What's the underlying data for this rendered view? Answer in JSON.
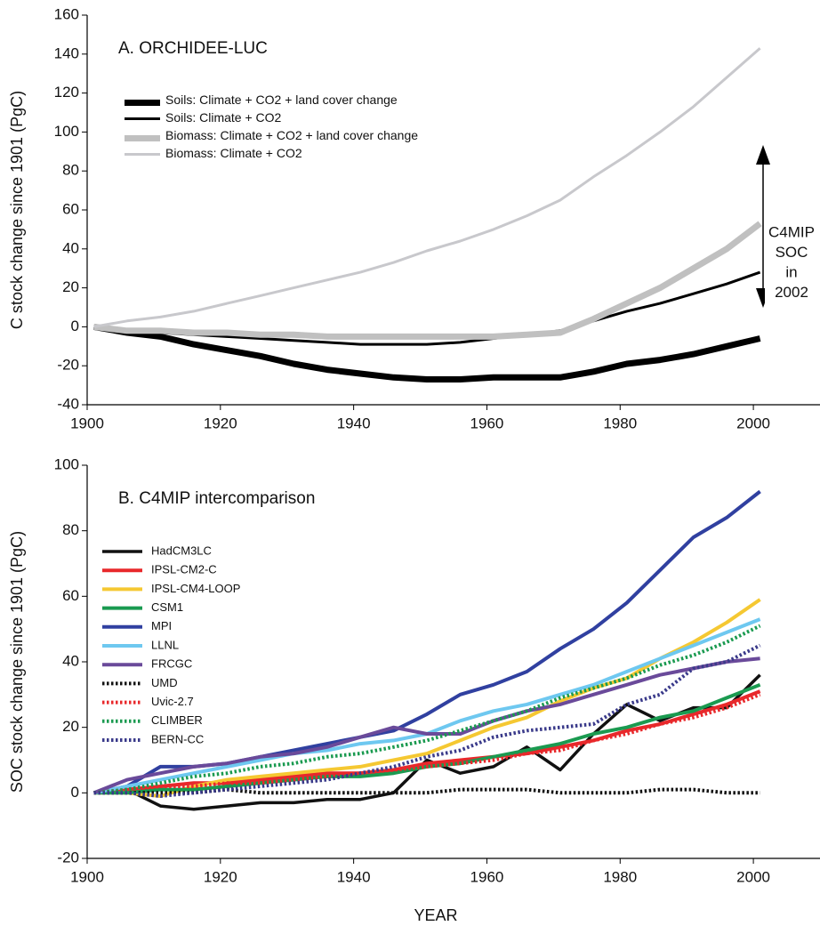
{
  "chart_data": [
    {
      "type": "line",
      "title": "A. ORCHIDEE-LUC",
      "y_label": "C stock change since 1901 (PgC)",
      "annotation": [
        "C4MIP",
        "SOC",
        "in",
        "2002"
      ],
      "x": [
        1901,
        1906,
        1911,
        1916,
        1921,
        1926,
        1931,
        1936,
        1941,
        1946,
        1951,
        1956,
        1961,
        1966,
        1971,
        1976,
        1981,
        1986,
        1991,
        1996,
        2001
      ],
      "xlim": [
        1900,
        2010
      ],
      "xticks": [
        1900,
        1920,
        1940,
        1960,
        1980,
        2000
      ],
      "ylim": [
        -40,
        160
      ],
      "yticks": [
        -40,
        -20,
        0,
        20,
        40,
        60,
        80,
        100,
        120,
        140,
        160
      ],
      "series": [
        {
          "name": "Soils: Climate + CO2 + land cover change",
          "color": "#000000",
          "line_width": 7,
          "dashed": false,
          "values": [
            0,
            -3,
            -5,
            -9,
            -12,
            -15,
            -19,
            -22,
            -24,
            -26,
            -27,
            -27,
            -26,
            -26,
            -26,
            -23,
            -19,
            -17,
            -14,
            -10,
            -6
          ]
        },
        {
          "name": "Soils: Climate + CO2",
          "color": "#000000",
          "line_width": 3,
          "dashed": false,
          "values": [
            0,
            -3,
            -3,
            -4,
            -5,
            -6,
            -7,
            -8,
            -9,
            -9,
            -9,
            -8,
            -6,
            -4,
            -2,
            3,
            8,
            12,
            17,
            22,
            28
          ]
        },
        {
          "name": "Biomass: Climate + CO2 + land cover change",
          "color": "#c0c0c0",
          "line_width": 7,
          "dashed": false,
          "values": [
            0,
            -2,
            -2,
            -3,
            -3,
            -4,
            -4,
            -5,
            -5,
            -5,
            -5,
            -5,
            -5,
            -4,
            -3,
            4,
            12,
            20,
            30,
            40,
            53
          ]
        },
        {
          "name": "Biomass: Climate + CO2",
          "color": "#c8c8cc",
          "line_width": 3,
          "dashed": false,
          "values": [
            0,
            3,
            5,
            8,
            12,
            16,
            20,
            24,
            28,
            33,
            39,
            44,
            50,
            57,
            65,
            77,
            88,
            100,
            113,
            128,
            143
          ]
        }
      ]
    },
    {
      "type": "line",
      "title": "B. C4MIP intercomparison",
      "y_label": "SOC stock change since 1901 (PgC)",
      "x_label": "YEAR",
      "x": [
        1901,
        1906,
        1911,
        1916,
        1921,
        1926,
        1931,
        1936,
        1941,
        1946,
        1951,
        1956,
        1961,
        1966,
        1971,
        1976,
        1981,
        1986,
        1991,
        1996,
        2001
      ],
      "xlim": [
        1900,
        2010
      ],
      "xticks": [
        1900,
        1920,
        1940,
        1960,
        1980,
        2000
      ],
      "ylim": [
        -20,
        100
      ],
      "yticks": [
        -20,
        0,
        20,
        40,
        60,
        80,
        100
      ],
      "series": [
        {
          "name": "HadCM3LC",
          "color": "#111111",
          "line_width": 3.5,
          "dashed": false,
          "values": [
            0,
            1,
            -4,
            -5,
            -4,
            -3,
            -3,
            -2,
            -2,
            0,
            10,
            6,
            8,
            14,
            7,
            18,
            27,
            22,
            26,
            26,
            36
          ]
        },
        {
          "name": "IPSL-CM2-C",
          "color": "#e8282b",
          "line_width": 4,
          "dashed": false,
          "values": [
            0,
            1,
            2,
            3,
            3,
            4,
            5,
            6,
            6,
            7,
            9,
            10,
            11,
            12,
            14,
            16,
            19,
            21,
            24,
            27,
            31
          ]
        },
        {
          "name": "IPSL-CM4-LOOP",
          "color": "#f5c832",
          "line_width": 4,
          "dashed": false,
          "values": [
            0,
            0,
            -1,
            2,
            4,
            5,
            6,
            7,
            8,
            10,
            12,
            16,
            20,
            23,
            28,
            32,
            35,
            41,
            46,
            52,
            59
          ]
        },
        {
          "name": "CSM1",
          "color": "#1a9a50",
          "line_width": 4,
          "dashed": false,
          "values": [
            0,
            0,
            1,
            1,
            2,
            3,
            4,
            5,
            5,
            6,
            8,
            9,
            11,
            13,
            15,
            18,
            20,
            23,
            25,
            29,
            33
          ]
        },
        {
          "name": "MPI",
          "color": "#3040a0",
          "line_width": 4,
          "dashed": false,
          "values": [
            0,
            2,
            8,
            8,
            9,
            11,
            13,
            15,
            17,
            19,
            24,
            30,
            33,
            37,
            44,
            50,
            58,
            68,
            78,
            84,
            92
          ]
        },
        {
          "name": "LLNL",
          "color": "#6ec8f0",
          "line_width": 4,
          "dashed": false,
          "values": [
            0,
            2,
            4,
            6,
            8,
            10,
            12,
            13,
            15,
            16,
            18,
            22,
            25,
            27,
            30,
            33,
            37,
            41,
            45,
            49,
            53
          ]
        },
        {
          "name": "FRCGC",
          "color": "#6a4a9a",
          "line_width": 4,
          "dashed": false,
          "values": [
            0,
            4,
            6,
            8,
            9,
            11,
            12,
            14,
            17,
            20,
            18,
            18,
            22,
            25,
            27,
            30,
            33,
            36,
            38,
            40,
            41
          ]
        },
        {
          "name": "UMD",
          "color": "#111111",
          "line_width": 4,
          "dashed": true,
          "values": [
            0,
            0,
            0,
            0,
            1,
            0,
            0,
            0,
            0,
            0,
            0,
            1,
            1,
            1,
            0,
            0,
            0,
            1,
            1,
            0,
            0
          ]
        },
        {
          "name": "Uvic-2.7",
          "color": "#e8282b",
          "line_width": 4,
          "dashed": true,
          "values": [
            0,
            1,
            2,
            2,
            3,
            3,
            4,
            5,
            6,
            7,
            8,
            9,
            10,
            12,
            13,
            16,
            18,
            21,
            23,
            26,
            30
          ]
        },
        {
          "name": "CLIMBER",
          "color": "#1a9a50",
          "line_width": 4,
          "dashed": true,
          "values": [
            0,
            1,
            3,
            5,
            6,
            8,
            9,
            11,
            12,
            14,
            16,
            19,
            22,
            25,
            29,
            32,
            35,
            39,
            42,
            46,
            51
          ]
        },
        {
          "name": "BERN-CC",
          "color": "#3a3a8a",
          "line_width": 4,
          "dashed": true,
          "values": [
            0,
            0,
            -1,
            0,
            1,
            2,
            3,
            4,
            6,
            8,
            11,
            13,
            17,
            19,
            20,
            21,
            27,
            30,
            38,
            40,
            45
          ]
        }
      ]
    }
  ]
}
